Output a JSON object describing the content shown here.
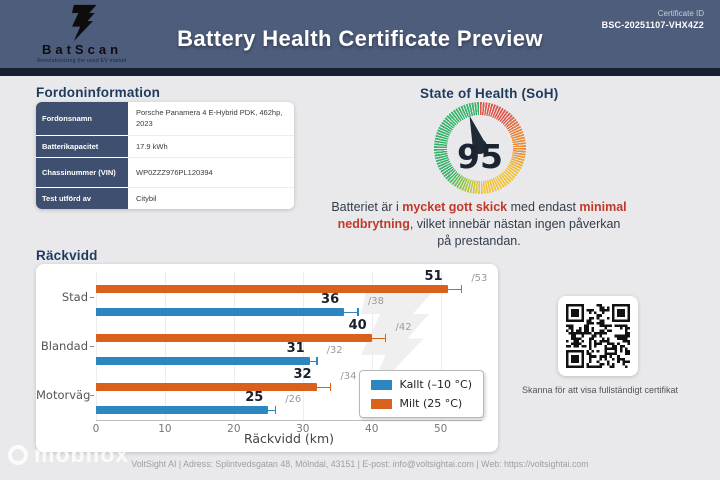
{
  "header": {
    "logo": {
      "brand": "BatScan",
      "tagline": "Revolutionizing the used EV market"
    },
    "title": "Battery Health Certificate Preview",
    "certificate_id_label": "Certificate ID",
    "certificate_id": "BSC-20251107-VHX4Z2"
  },
  "vehicle_info": {
    "title": "Fordoninformation",
    "rows": [
      {
        "label": "Fordonsnamn",
        "value": "Porsche Panamera 4 E-Hybrid PDK, 462hp, 2023"
      },
      {
        "label": "Batterikapacitet",
        "value": "17.9 kWh"
      },
      {
        "label": "Chassinummer (VIN)",
        "value": "WP0ZZZ976PL120394"
      },
      {
        "label": "Test utförd av",
        "value": "Citybil"
      }
    ]
  },
  "soh": {
    "title": "State of Health (SoH)",
    "value": 95,
    "description_parts": [
      {
        "text": "Batteriet är i ",
        "highlight": false
      },
      {
        "text": "mycket gott skick",
        "highlight": true
      },
      {
        "text": " med endast ",
        "highlight": false
      },
      {
        "text": "minimal nedbrytning",
        "highlight": true
      },
      {
        "text": ", vilket innebär nästan ingen påverkan på prestandan.",
        "highlight": false
      }
    ],
    "gauge_colors": {
      "good": "#35b469",
      "mid": "#f2c335",
      "warn": "#ec8a33",
      "bad": "#e0564a"
    },
    "highlight_color": "#c0392b"
  },
  "chart_data": {
    "type": "bar",
    "orientation": "horizontal",
    "title": "Räckvidd",
    "categories": [
      "Stad",
      "Blandad",
      "Motorväg"
    ],
    "series": [
      {
        "name": "Milt (25 °C)",
        "color": "#d9611c",
        "values": [
          51,
          40,
          32
        ],
        "upper": [
          53,
          42,
          34
        ]
      },
      {
        "name": "Kallt (–10 °C)",
        "color": "#2e86c1",
        "values": [
          36,
          31,
          25
        ],
        "upper": [
          38,
          32,
          26
        ]
      }
    ],
    "value_label_format": "bold value plus /upper in gray",
    "xlabel": "Räckvidd (km)",
    "xlim": [
      0,
      56
    ],
    "xticks": [
      0,
      10,
      20,
      30,
      40,
      50
    ],
    "grid": true,
    "legend_position": "lower right",
    "legend": [
      {
        "label": "Kallt (–10 °C)",
        "color": "#2e86c1"
      },
      {
        "label": "Milt (25 °C)",
        "color": "#d9611c"
      }
    ]
  },
  "qr": {
    "caption": "Skanna för att visa fullständigt certifikat"
  },
  "footer": {
    "text": "VoltSight AI | Adress: Splintvedsgatan 48, Mölndal, 43151 | E-post: info@voltsightai.com | Web: https://voltsightai.com"
  },
  "watermark": {
    "text": "mobilox"
  }
}
